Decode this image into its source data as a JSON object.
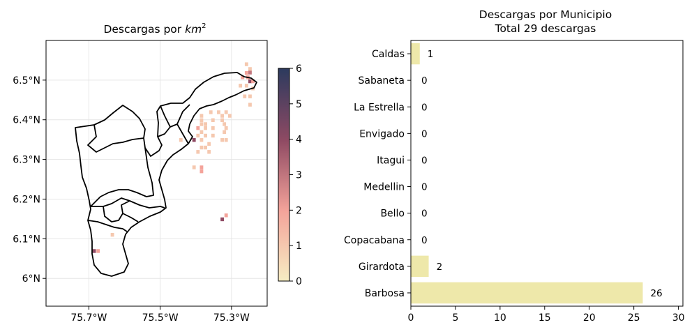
{
  "chart_data": [
    {
      "type": "heatmap",
      "title": "Descargas por km²",
      "title_text": "Descargas por ",
      "title_math": "km",
      "title_sup": "2",
      "x_ticks": [
        "75.7°W",
        "75.5°W",
        "75.3°W"
      ],
      "y_ticks": [
        "6.5°N",
        "6.4°N",
        "6.3°N",
        "6.2°N",
        "6.1°N",
        "6°N"
      ],
      "xlim": [
        -75.82,
        -75.2
      ],
      "ylim": [
        5.93,
        6.6
      ],
      "grid": true,
      "colorbar": {
        "ticks": [
          "0",
          "1",
          "2",
          "3",
          "4",
          "5",
          "6"
        ],
        "range": [
          0,
          6
        ],
        "colors": [
          "#f6edc3",
          "#f4a39a",
          "#8f4a63",
          "#2c3a5e"
        ]
      },
      "cells": [
        {
          "lon": -75.258,
          "lat": 6.54,
          "v": 1
        },
        {
          "lon": -75.248,
          "lat": 6.528,
          "v": 1
        },
        {
          "lon": -75.258,
          "lat": 6.518,
          "v": 2
        },
        {
          "lon": -75.248,
          "lat": 6.519,
          "v": 3
        },
        {
          "lon": -75.269,
          "lat": 6.507,
          "v": 2
        },
        {
          "lon": -75.254,
          "lat": 6.507,
          "v": 2
        },
        {
          "lon": -75.248,
          "lat": 6.497,
          "v": 4
        },
        {
          "lon": -75.24,
          "lat": 6.497,
          "v": 2
        },
        {
          "lon": -75.275,
          "lat": 6.486,
          "v": 1
        },
        {
          "lon": -75.258,
          "lat": 6.486,
          "v": 1
        },
        {
          "lon": -75.24,
          "lat": 6.479,
          "v": 1
        },
        {
          "lon": -75.263,
          "lat": 6.459,
          "v": 1
        },
        {
          "lon": -75.248,
          "lat": 6.459,
          "v": 1
        },
        {
          "lon": -75.248,
          "lat": 6.438,
          "v": 1
        },
        {
          "lon": -75.358,
          "lat": 6.419,
          "v": 1
        },
        {
          "lon": -75.336,
          "lat": 6.419,
          "v": 1
        },
        {
          "lon": -75.315,
          "lat": 6.419,
          "v": 1
        },
        {
          "lon": -75.384,
          "lat": 6.41,
          "v": 1
        },
        {
          "lon": -75.326,
          "lat": 6.41,
          "v": 1
        },
        {
          "lon": -75.305,
          "lat": 6.41,
          "v": 1
        },
        {
          "lon": -75.384,
          "lat": 6.399,
          "v": 1
        },
        {
          "lon": -75.352,
          "lat": 6.399,
          "v": 1
        },
        {
          "lon": -75.326,
          "lat": 6.399,
          "v": 1
        },
        {
          "lon": -75.384,
          "lat": 6.389,
          "v": 1
        },
        {
          "lon": -75.373,
          "lat": 6.389,
          "v": 1
        },
        {
          "lon": -75.32,
          "lat": 6.389,
          "v": 1
        },
        {
          "lon": -75.394,
          "lat": 6.379,
          "v": 2
        },
        {
          "lon": -75.373,
          "lat": 6.379,
          "v": 1
        },
        {
          "lon": -75.352,
          "lat": 6.379,
          "v": 1
        },
        {
          "lon": -75.315,
          "lat": 6.379,
          "v": 1
        },
        {
          "lon": -75.384,
          "lat": 6.369,
          "v": 1
        },
        {
          "lon": -75.32,
          "lat": 6.369,
          "v": 1
        },
        {
          "lon": -75.394,
          "lat": 6.36,
          "v": 1
        },
        {
          "lon": -75.373,
          "lat": 6.36,
          "v": 1
        },
        {
          "lon": -75.352,
          "lat": 6.36,
          "v": 1
        },
        {
          "lon": -75.442,
          "lat": 6.349,
          "v": 1
        },
        {
          "lon": -75.405,
          "lat": 6.349,
          "v": 4
        },
        {
          "lon": -75.384,
          "lat": 6.349,
          "v": 1
        },
        {
          "lon": -75.326,
          "lat": 6.349,
          "v": 1
        },
        {
          "lon": -75.315,
          "lat": 6.349,
          "v": 1
        },
        {
          "lon": -75.363,
          "lat": 6.339,
          "v": 1
        },
        {
          "lon": -75.384,
          "lat": 6.33,
          "v": 1
        },
        {
          "lon": -75.373,
          "lat": 6.33,
          "v": 1
        },
        {
          "lon": -75.394,
          "lat": 6.319,
          "v": 1
        },
        {
          "lon": -75.363,
          "lat": 6.319,
          "v": 1
        },
        {
          "lon": -75.405,
          "lat": 6.28,
          "v": 1
        },
        {
          "lon": -75.384,
          "lat": 6.28,
          "v": 2
        },
        {
          "lon": -75.384,
          "lat": 6.27,
          "v": 2
        },
        {
          "lon": -75.315,
          "lat": 6.159,
          "v": 2
        },
        {
          "lon": -75.326,
          "lat": 6.149,
          "v": 4
        },
        {
          "lon": -75.634,
          "lat": 6.11,
          "v": 1
        },
        {
          "lon": -75.685,
          "lat": 6.069,
          "v": 4
        },
        {
          "lon": -75.674,
          "lat": 6.069,
          "v": 2
        }
      ]
    },
    {
      "type": "bar",
      "title": "Descargas por Municipio",
      "subtitle": "Total 29 descargas",
      "orientation": "horizontal",
      "categories": [
        "Caldas",
        "Sabaneta",
        "La Estrella",
        "Envigado",
        "Itagui",
        "Medellin",
        "Bello",
        "Copacabana",
        "Girardota",
        "Barbosa"
      ],
      "values": [
        1,
        0,
        0,
        0,
        0,
        0,
        0,
        0,
        2,
        26
      ],
      "value_labels": [
        "1",
        "0",
        "0",
        "0",
        "0",
        "0",
        "0",
        "0",
        "2",
        "26"
      ],
      "x_ticks": [
        "0",
        "5",
        "10",
        "15",
        "20",
        "25",
        "30"
      ],
      "xlim": [
        0,
        30.5
      ],
      "bar_color": "#eee8aa"
    }
  ]
}
